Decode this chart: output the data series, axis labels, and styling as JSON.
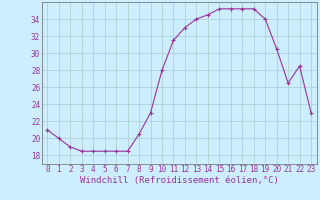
{
  "x": [
    0,
    1,
    2,
    3,
    4,
    5,
    6,
    7,
    8,
    9,
    10,
    11,
    12,
    13,
    14,
    15,
    16,
    17,
    18,
    19,
    20,
    21,
    22,
    23
  ],
  "y": [
    21,
    20,
    19,
    18.5,
    18.5,
    18.5,
    18.5,
    18.5,
    20.5,
    23,
    28,
    31.5,
    33,
    34,
    34.5,
    35.2,
    35.2,
    35.2,
    35.2,
    34,
    30.5,
    26.5,
    28.5,
    23
  ],
  "line_color": "#993399",
  "marker": "D",
  "marker_size": 2,
  "bg_color": "#cceeff",
  "grid_color": "#aacccc",
  "xlabel": "Windchill (Refroidissement éolien,°C)",
  "xlabel_color": "#993399",
  "tick_color": "#993399",
  "xlim": [
    -0.5,
    23.5
  ],
  "ylim": [
    17,
    36
  ],
  "yticks": [
    18,
    20,
    22,
    24,
    26,
    28,
    30,
    32,
    34
  ],
  "xticks": [
    0,
    1,
    2,
    3,
    4,
    5,
    6,
    7,
    8,
    9,
    10,
    11,
    12,
    13,
    14,
    15,
    16,
    17,
    18,
    19,
    20,
    21,
    22,
    23
  ],
  "xtick_labels": [
    "0",
    "1",
    "2",
    "3",
    "4",
    "5",
    "6",
    "7",
    "8",
    "9",
    "10",
    "11",
    "12",
    "13",
    "14",
    "15",
    "16",
    "17",
    "18",
    "19",
    "20",
    "21",
    "22",
    "23"
  ],
  "font_size_label": 6.5,
  "font_size_tick": 5.5
}
